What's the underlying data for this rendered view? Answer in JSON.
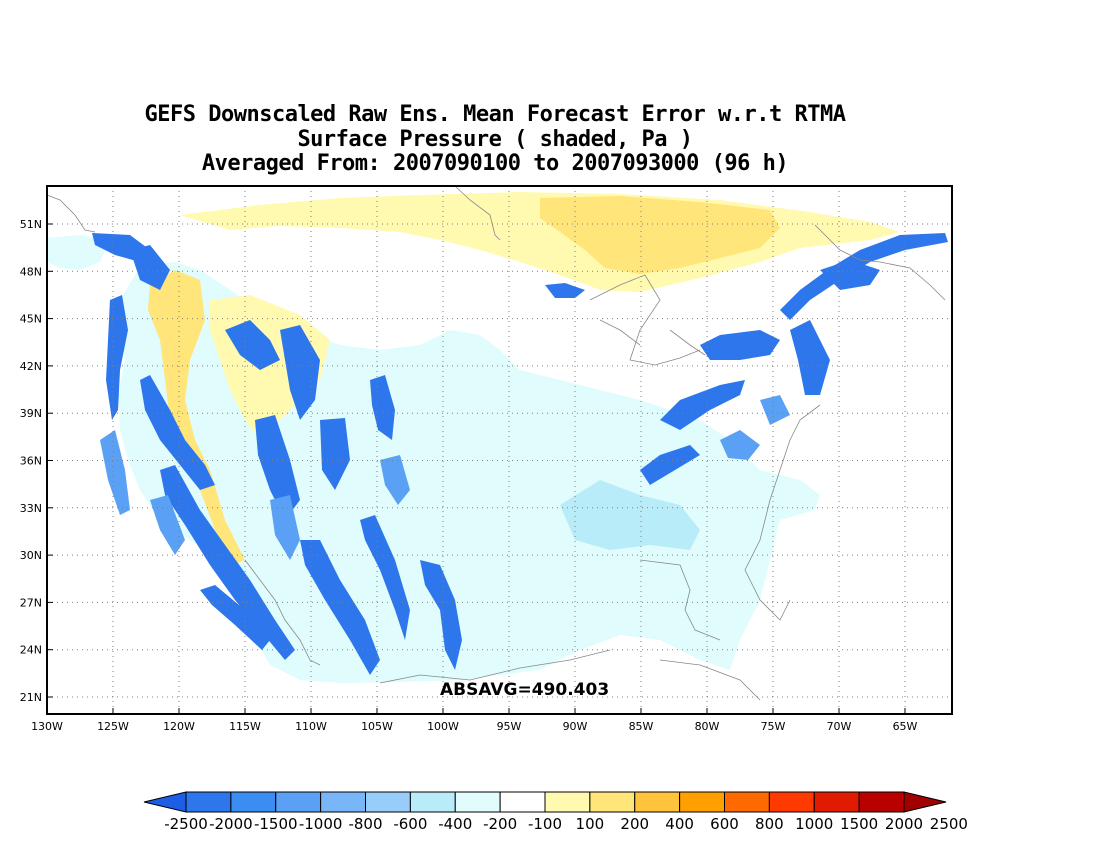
{
  "header": {
    "title_line1": "GEFS Downscaled Raw Ens. Mean Forecast Error w.r.t RTMA",
    "title_line2": "Surface Pressure ( shaded, Pa )",
    "title_line3": "Averaged From: 2007090100 to 2007093000 (96 h)"
  },
  "map": {
    "lat_ticks": [
      "51N",
      "48N",
      "45N",
      "42N",
      "39N",
      "36N",
      "33N",
      "30N",
      "27N",
      "24N",
      "21N"
    ],
    "lon_ticks": [
      "130W",
      "125W",
      "120W",
      "115W",
      "110W",
      "105W",
      "100W",
      "95W",
      "90W",
      "85W",
      "80W",
      "75W",
      "70W",
      "65W"
    ],
    "absavg_label": "ABSAVG=490.403",
    "grid": "dotted"
  },
  "colorbar": {
    "labels": [
      "-2500",
      "-2000",
      "-1500",
      "-1000",
      "-800",
      "-600",
      "-400",
      "-200",
      "-100",
      "100",
      "200",
      "400",
      "600",
      "800",
      "1000",
      "1500",
      "2000",
      "2500"
    ],
    "colors": [
      "#1e5ee5",
      "#2d76ec",
      "#3c8df2",
      "#5aa0f4",
      "#78b6f7",
      "#98cdfa",
      "#b8ecf8",
      "#e0fcfd",
      "#ffffff",
      "#fffab0",
      "#ffe57a",
      "#ffc43c",
      "#ff9f00",
      "#ff6a00",
      "#ff3a00",
      "#e01b00",
      "#b80000",
      "#a00000"
    ]
  }
}
